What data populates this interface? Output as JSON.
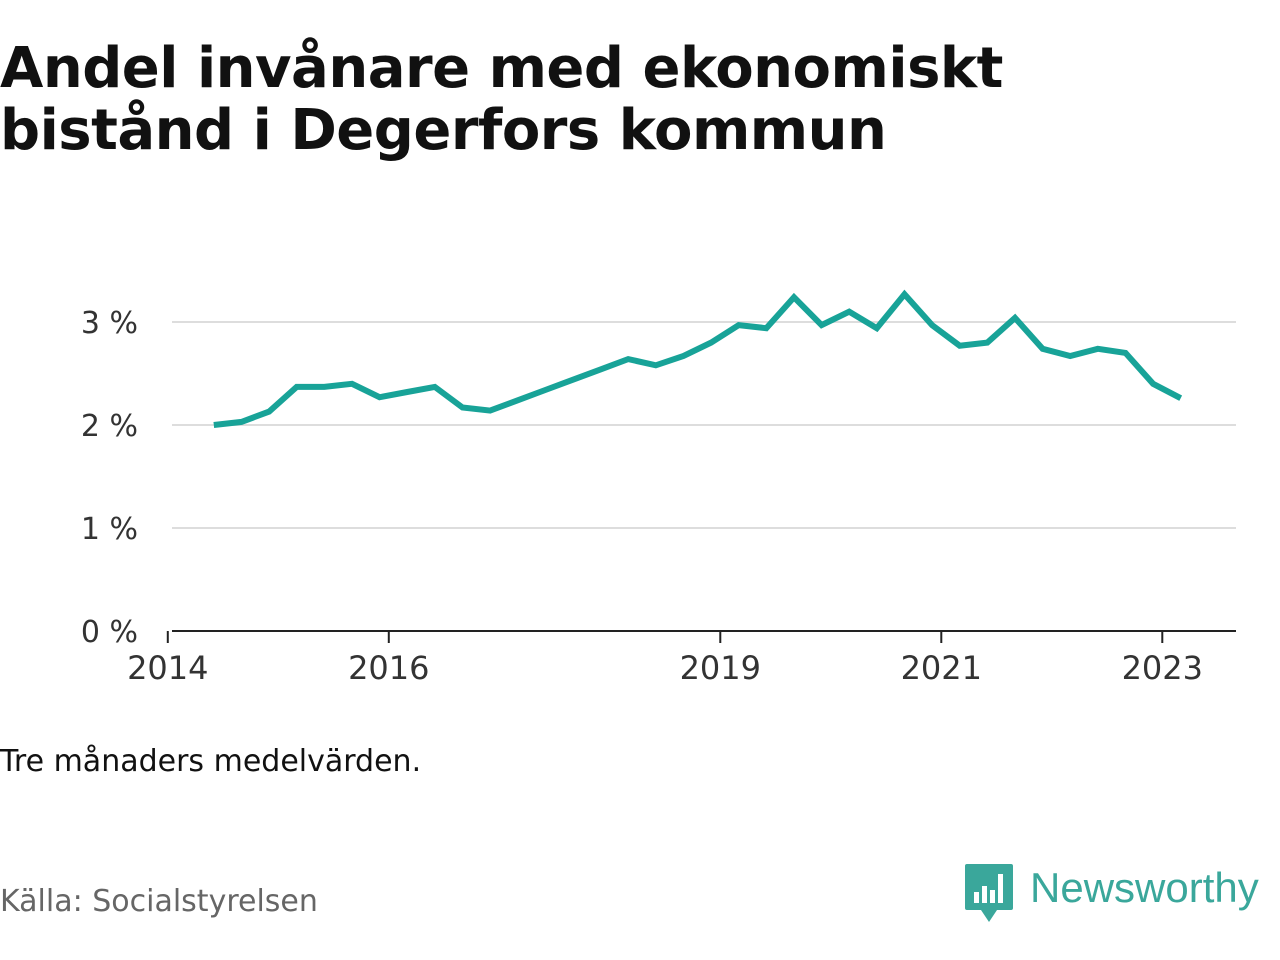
{
  "title_lines": [
    "Andel invånare med ekonomiskt",
    "bistånd i Degerfors kommun"
  ],
  "note": "Tre månaders medelvärden.",
  "source": "Källa: Socialstyrelsen",
  "brand": {
    "name": "Newsworthy",
    "icon": "newsworthy-logo-icon",
    "color": "#3aa79b"
  },
  "chart_data": {
    "type": "line",
    "line_color": "#18a398",
    "grid": true,
    "ylim": [
      0,
      3.3
    ],
    "y_ticks": [
      0,
      1,
      2,
      3
    ],
    "y_tick_labels": [
      "0 %",
      "1 %",
      "2 %",
      "3 %"
    ],
    "x_ticks": [
      "2014-01",
      "2016-01",
      "2019-01",
      "2021-01",
      "2023-01"
    ],
    "x_tick_labels": [
      "2014",
      "2016",
      "2019",
      "2021",
      "2023"
    ],
    "series": [
      {
        "points": [
          [
            "2014-06",
            2.0
          ],
          [
            "2014-09",
            2.03
          ],
          [
            "2014-12",
            2.13
          ],
          [
            "2015-03",
            2.37
          ],
          [
            "2015-06",
            2.37
          ],
          [
            "2015-09",
            2.4
          ],
          [
            "2015-12",
            2.27
          ],
          [
            "2016-03",
            2.32
          ],
          [
            "2016-06",
            2.37
          ],
          [
            "2016-09",
            2.17
          ],
          [
            "2016-12",
            2.14
          ],
          [
            "2017-03",
            2.24
          ],
          [
            "2017-06",
            2.34
          ],
          [
            "2017-09",
            2.44
          ],
          [
            "2017-12",
            2.54
          ],
          [
            "2018-03",
            2.64
          ],
          [
            "2018-06",
            2.58
          ],
          [
            "2018-09",
            2.67
          ],
          [
            "2018-12",
            2.8
          ],
          [
            "2019-03",
            2.97
          ],
          [
            "2019-06",
            2.94
          ],
          [
            "2019-09",
            3.24
          ],
          [
            "2019-12",
            2.97
          ],
          [
            "2020-03",
            3.1
          ],
          [
            "2020-06",
            2.94
          ],
          [
            "2020-09",
            3.27
          ],
          [
            "2020-12",
            2.97
          ],
          [
            "2021-03",
            2.77
          ],
          [
            "2021-06",
            2.8
          ],
          [
            "2021-09",
            3.04
          ],
          [
            "2021-12",
            2.74
          ],
          [
            "2022-03",
            2.67
          ],
          [
            "2022-06",
            2.74
          ],
          [
            "2022-09",
            2.7
          ],
          [
            "2022-12",
            2.4
          ],
          [
            "2023-03",
            2.26
          ]
        ]
      }
    ]
  }
}
